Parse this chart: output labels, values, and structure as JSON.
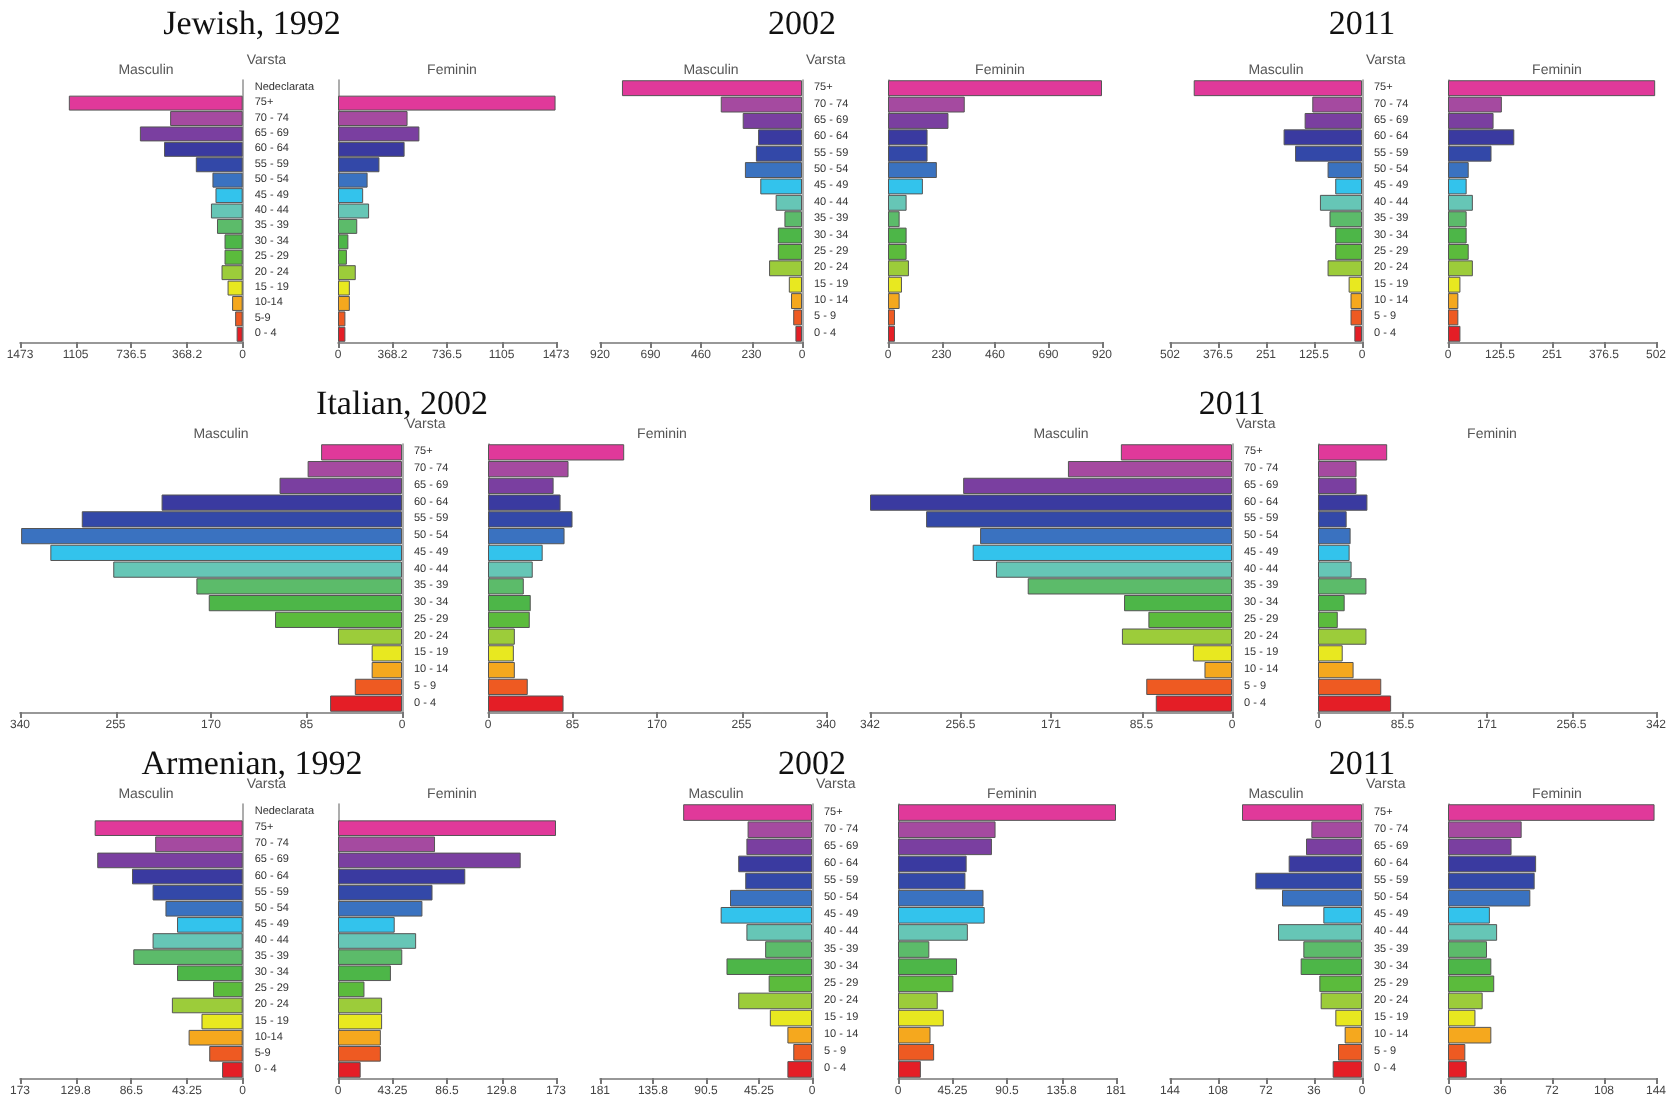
{
  "chart_data": [
    {
      "type": "bar",
      "orientation": "horizontal",
      "title": "Jewish, 1992",
      "subtitle": "Masculin",
      "ylabel": "Varsta",
      "categories": [
        "Nedeclarata",
        "75+",
        "70 - 74",
        "65 - 69",
        "60 - 64",
        "55 - 59",
        "50 - 54",
        "45 - 49",
        "40 - 44",
        "35 - 39",
        "30 - 34",
        "25 - 29",
        "20 - 24",
        "15 - 19",
        "10-14",
        "5-9",
        "0 - 4"
      ],
      "values": [
        null,
        1150,
        480,
        680,
        520,
        310,
        200,
        180,
        210,
        170,
        120,
        120,
        140,
        100,
        70,
        50,
        40
      ],
      "colors": [
        null,
        "#e0399a",
        "#a54aa0",
        "#7a3fa0",
        "#3a3aa0",
        "#3348a8",
        "#3a72c0",
        "#33c3ec",
        "#66c6b6",
        "#5cbb6a",
        "#4db648",
        "#5bbb3c",
        "#9ccc3a",
        "#e8e820",
        "#f5a81e",
        "#ee5a22",
        "#e41e26"
      ],
      "xlim": [
        1473,
        0
      ],
      "xticks": [
        1473,
        1105,
        736.5,
        368.2,
        0
      ]
    },
    {
      "type": "bar",
      "orientation": "horizontal",
      "subtitle": "Feminin",
      "categories": [
        null,
        null,
        null,
        null,
        null,
        null,
        null,
        null,
        null,
        null,
        null,
        null,
        null,
        null,
        null,
        null,
        null
      ],
      "values": [
        null,
        1470,
        470,
        550,
        450,
        280,
        200,
        170,
        210,
        130,
        70,
        60,
        120,
        80,
        80,
        50,
        50
      ],
      "colors": [
        null,
        "#e0399a",
        "#a54aa0",
        "#7a3fa0",
        "#3a3aa0",
        "#3348a8",
        "#3a72c0",
        "#33c3ec",
        "#66c6b6",
        "#5cbb6a",
        "#4db648",
        "#5bbb3c",
        "#9ccc3a",
        "#e8e820",
        "#f5a81e",
        "#ee5a22",
        "#e41e26"
      ],
      "xlim": [
        0,
        1473
      ],
      "xticks": [
        0,
        368.2,
        736.5,
        1105,
        1473
      ]
    },
    {
      "type": "bar",
      "orientation": "horizontal",
      "title": "2002",
      "subtitle": "Masculin",
      "ylabel": "Varsta",
      "categories": [
        "75+",
        "70 - 74",
        "65 - 69",
        "60 - 64",
        "55 - 59",
        "50 - 54",
        "45 - 49",
        "40 - 44",
        "35 - 39",
        "30 - 34",
        "25 - 29",
        "20 - 24",
        "15 - 19",
        "10 - 14",
        "5 - 9",
        "0 - 4"
      ],
      "values": [
        820,
        370,
        270,
        200,
        210,
        260,
        190,
        120,
        80,
        110,
        110,
        150,
        60,
        50,
        40,
        30
      ],
      "colors": [
        "#e0399a",
        "#a54aa0",
        "#7a3fa0",
        "#3a3aa0",
        "#3348a8",
        "#3a72c0",
        "#33c3ec",
        "#66c6b6",
        "#5cbb6a",
        "#4db648",
        "#5bbb3c",
        "#9ccc3a",
        "#e8e820",
        "#f5a81e",
        "#ee5a22",
        "#e41e26"
      ],
      "xlim": [
        920,
        0
      ],
      "xticks": [
        920,
        690,
        460,
        230,
        0
      ]
    },
    {
      "type": "bar",
      "orientation": "horizontal",
      "subtitle": "Feminin",
      "categories": [
        null,
        null,
        null,
        null,
        null,
        null,
        null,
        null,
        null,
        null,
        null,
        null,
        null,
        null,
        null,
        null
      ],
      "values": [
        920,
        330,
        260,
        170,
        170,
        210,
        150,
        80,
        50,
        80,
        80,
        90,
        60,
        50,
        30,
        30
      ],
      "colors": [
        "#e0399a",
        "#a54aa0",
        "#7a3fa0",
        "#3a3aa0",
        "#3348a8",
        "#3a72c0",
        "#33c3ec",
        "#66c6b6",
        "#5cbb6a",
        "#4db648",
        "#5bbb3c",
        "#9ccc3a",
        "#e8e820",
        "#f5a81e",
        "#ee5a22",
        "#e41e26"
      ],
      "xlim": [
        0,
        920
      ],
      "xticks": [
        0,
        230,
        460,
        690,
        920
      ]
    },
    {
      "type": "bar",
      "orientation": "horizontal",
      "title": "2011",
      "subtitle": "Masculin",
      "ylabel": "Varsta",
      "categories": [
        "75+",
        "70 - 74",
        "65 - 69",
        "60 - 64",
        "55 - 59",
        "50 - 54",
        "45 - 49",
        "40 - 44",
        "35 - 39",
        "30 - 34",
        "25 - 29",
        "20 - 24",
        "15 - 19",
        "10 - 14",
        "5 - 9",
        "0 - 4"
      ],
      "values": [
        440,
        130,
        150,
        205,
        175,
        90,
        70,
        110,
        85,
        70,
        70,
        90,
        35,
        30,
        30,
        20
      ],
      "colors": [
        "#e0399a",
        "#a54aa0",
        "#7a3fa0",
        "#3a3aa0",
        "#3348a8",
        "#3a72c0",
        "#33c3ec",
        "#66c6b6",
        "#5cbb6a",
        "#4db648",
        "#5bbb3c",
        "#9ccc3a",
        "#e8e820",
        "#f5a81e",
        "#ee5a22",
        "#e41e26"
      ],
      "xlim": [
        502,
        0
      ],
      "xticks": [
        502,
        376.5,
        251,
        125.5,
        0
      ]
    },
    {
      "type": "bar",
      "orientation": "horizontal",
      "subtitle": "Feminin",
      "categories": [
        null,
        null,
        null,
        null,
        null,
        null,
        null,
        null,
        null,
        null,
        null,
        null,
        null,
        null,
        null,
        null
      ],
      "values": [
        500,
        130,
        110,
        160,
        105,
        50,
        45,
        60,
        45,
        45,
        50,
        60,
        30,
        25,
        25,
        30
      ],
      "colors": [
        "#e0399a",
        "#a54aa0",
        "#7a3fa0",
        "#3a3aa0",
        "#3348a8",
        "#3a72c0",
        "#33c3ec",
        "#66c6b6",
        "#5cbb6a",
        "#4db648",
        "#5bbb3c",
        "#9ccc3a",
        "#e8e820",
        "#f5a81e",
        "#ee5a22",
        "#e41e26"
      ],
      "xlim": [
        0,
        502
      ],
      "xticks": [
        0,
        125.5,
        251,
        376.5,
        502
      ]
    },
    {
      "type": "bar",
      "orientation": "horizontal",
      "title": "Italian, 2002",
      "subtitle": "Masculin",
      "ylabel": "Varsta",
      "categories": [
        "75+",
        "70 - 74",
        "65 - 69",
        "60 - 64",
        "55 - 59",
        "50 - 54",
        "45 - 49",
        "40 - 44",
        "35 - 39",
        "30 - 34",
        "25 - 29",
        "20 - 24",
        "15 - 19",
        "10 - 14",
        "5 - 9",
        "0 - 4"
      ],
      "values": [
        72,
        84,
        109,
        214,
        285,
        339,
        313,
        257,
        183,
        172,
        113,
        57,
        27,
        27,
        42,
        64
      ],
      "colors": [
        "#e0399a",
        "#a54aa0",
        "#7a3fa0",
        "#3a3aa0",
        "#3348a8",
        "#3a72c0",
        "#33c3ec",
        "#66c6b6",
        "#5cbb6a",
        "#4db648",
        "#5bbb3c",
        "#9ccc3a",
        "#e8e820",
        "#f5a81e",
        "#ee5a22",
        "#e41e26"
      ],
      "xlim": [
        340,
        0
      ],
      "xticks": [
        340,
        255,
        170,
        85,
        0
      ]
    },
    {
      "type": "bar",
      "orientation": "horizontal",
      "subtitle": "Feminin",
      "categories": [
        null,
        null,
        null,
        null,
        null,
        null,
        null,
        null,
        null,
        null,
        null,
        null,
        null,
        null,
        null,
        null
      ],
      "values": [
        137,
        81,
        66,
        73,
        85,
        77,
        55,
        45,
        36,
        43,
        42,
        27,
        26,
        27,
        40,
        76
      ],
      "colors": [
        "#e0399a",
        "#a54aa0",
        "#7a3fa0",
        "#3a3aa0",
        "#3348a8",
        "#3a72c0",
        "#33c3ec",
        "#66c6b6",
        "#5cbb6a",
        "#4db648",
        "#5bbb3c",
        "#9ccc3a",
        "#e8e820",
        "#f5a81e",
        "#ee5a22",
        "#e41e26"
      ],
      "xlim": [
        0,
        340
      ],
      "xticks": [
        0,
        85,
        170,
        255,
        340
      ]
    },
    {
      "type": "bar",
      "orientation": "horizontal",
      "title": "2011",
      "subtitle": "Masculin",
      "ylabel": "Varsta",
      "categories": [
        "75+",
        "70 - 74",
        "65 - 69",
        "60 - 64",
        "55 - 59",
        "50 - 54",
        "45 - 49",
        "40 - 44",
        "35 - 39",
        "30 - 34",
        "25 - 29",
        "20 - 24",
        "15 - 19",
        "10 - 14",
        "5 - 9",
        "0 - 4"
      ],
      "values": [
        105,
        155,
        254,
        342,
        289,
        238,
        245,
        223,
        193,
        102,
        79,
        104,
        37,
        26,
        81,
        72
      ],
      "colors": [
        "#e0399a",
        "#a54aa0",
        "#7a3fa0",
        "#3a3aa0",
        "#3348a8",
        "#3a72c0",
        "#33c3ec",
        "#66c6b6",
        "#5cbb6a",
        "#4db648",
        "#5bbb3c",
        "#9ccc3a",
        "#e8e820",
        "#f5a81e",
        "#ee5a22",
        "#e41e26"
      ],
      "xlim": [
        342,
        0
      ],
      "xticks": [
        342,
        256.5,
        171,
        85.5,
        0
      ]
    },
    {
      "type": "bar",
      "orientation": "horizontal",
      "subtitle": "Feminin",
      "categories": [
        null,
        null,
        null,
        null,
        null,
        null,
        null,
        null,
        null,
        null,
        null,
        null,
        null,
        null,
        null,
        null
      ],
      "values": [
        70,
        39,
        39,
        50,
        29,
        33,
        32,
        34,
        49,
        27,
        20,
        49,
        25,
        36,
        64,
        74
      ],
      "colors": [
        "#e0399a",
        "#a54aa0",
        "#7a3fa0",
        "#3a3aa0",
        "#3348a8",
        "#3a72c0",
        "#33c3ec",
        "#66c6b6",
        "#5cbb6a",
        "#4db648",
        "#5bbb3c",
        "#9ccc3a",
        "#e8e820",
        "#f5a81e",
        "#ee5a22",
        "#e41e26"
      ],
      "xlim": [
        0,
        342
      ],
      "xticks": [
        0,
        85.5,
        171,
        256.5,
        342
      ]
    },
    {
      "type": "bar",
      "orientation": "horizontal",
      "title": "Armenian, 1992",
      "subtitle": "Masculin",
      "ylabel": "Varsta",
      "categories": [
        "Nedeclarata",
        "75+",
        "70 - 74",
        "65 - 69",
        "60 - 64",
        "55 - 59",
        "50 - 54",
        "45 - 49",
        "40 - 44",
        "35 - 39",
        "30 - 34",
        "25 - 29",
        "20 - 24",
        "15 - 19",
        "10-14",
        "5-9",
        "0 - 4"
      ],
      "values": [
        null,
        115,
        68,
        113,
        86,
        70,
        60,
        51,
        70,
        85,
        51,
        23,
        55,
        32,
        42,
        26,
        16
      ],
      "colors": [
        null,
        "#e0399a",
        "#a54aa0",
        "#7a3fa0",
        "#3a3aa0",
        "#3348a8",
        "#3a72c0",
        "#33c3ec",
        "#66c6b6",
        "#5cbb6a",
        "#4db648",
        "#5bbb3c",
        "#9ccc3a",
        "#e8e820",
        "#f5a81e",
        "#ee5a22",
        "#e41e26"
      ],
      "xlim": [
        173,
        0
      ],
      "xticks": [
        173,
        129.8,
        86.5,
        43.25,
        0
      ]
    },
    {
      "type": "bar",
      "orientation": "horizontal",
      "subtitle": "Feminin",
      "categories": [
        null,
        null,
        null,
        null,
        null,
        null,
        null,
        null,
        null,
        null,
        null,
        null,
        null,
        null,
        null,
        null,
        null
      ],
      "values": [
        null,
        173,
        77,
        145,
        101,
        75,
        67,
        45,
        62,
        51,
        42,
        21,
        35,
        35,
        34,
        34,
        18
      ],
      "colors": [
        null,
        "#e0399a",
        "#a54aa0",
        "#7a3fa0",
        "#3a3aa0",
        "#3348a8",
        "#3a72c0",
        "#33c3ec",
        "#66c6b6",
        "#5cbb6a",
        "#4db648",
        "#5bbb3c",
        "#9ccc3a",
        "#e8e820",
        "#f5a81e",
        "#ee5a22",
        "#e41e26"
      ],
      "xlim": [
        0,
        173
      ],
      "xticks": [
        0,
        43.25,
        86.5,
        129.8,
        173
      ]
    },
    {
      "type": "bar",
      "orientation": "horizontal",
      "title": "2002",
      "subtitle": "Masculin",
      "ylabel": "Varsta",
      "categories": [
        "75+",
        "70 - 74",
        "65 - 69",
        "60 - 64",
        "55 - 59",
        "50 - 54",
        "45 - 49",
        "40 - 44",
        "35 - 39",
        "30 - 34",
        "25 - 29",
        "20 - 24",
        "15 - 19",
        "10 - 14",
        "5 - 9",
        "0 - 4"
      ],
      "values": [
        110,
        55,
        56,
        63,
        57,
        70,
        78,
        56,
        40,
        73,
        37,
        63,
        36,
        21,
        16,
        21
      ],
      "colors": [
        "#e0399a",
        "#a54aa0",
        "#7a3fa0",
        "#3a3aa0",
        "#3348a8",
        "#3a72c0",
        "#33c3ec",
        "#66c6b6",
        "#5cbb6a",
        "#4db648",
        "#5bbb3c",
        "#9ccc3a",
        "#e8e820",
        "#f5a81e",
        "#ee5a22",
        "#e41e26"
      ],
      "xlim": [
        181,
        0
      ],
      "xticks": [
        181,
        135.8,
        90.5,
        45.25,
        0
      ]
    },
    {
      "type": "bar",
      "orientation": "horizontal",
      "subtitle": "Feminin",
      "categories": [
        null,
        null,
        null,
        null,
        null,
        null,
        null,
        null,
        null,
        null,
        null,
        null,
        null,
        null,
        null,
        null
      ],
      "values": [
        181,
        81,
        78,
        57,
        56,
        71,
        72,
        58,
        26,
        49,
        46,
        33,
        38,
        27,
        30,
        19
      ],
      "colors": [
        "#e0399a",
        "#a54aa0",
        "#7a3fa0",
        "#3a3aa0",
        "#3348a8",
        "#3a72c0",
        "#33c3ec",
        "#66c6b6",
        "#5cbb6a",
        "#4db648",
        "#5bbb3c",
        "#9ccc3a",
        "#e8e820",
        "#f5a81e",
        "#ee5a22",
        "#e41e26"
      ],
      "xlim": [
        0,
        181
      ],
      "xticks": [
        0,
        45.25,
        90.5,
        135.8,
        181
      ]
    },
    {
      "type": "bar",
      "orientation": "horizontal",
      "title": "2011",
      "subtitle": "Masculin",
      "ylabel": "Varsta",
      "categories": [
        "75+",
        "70 - 74",
        "65 - 69",
        "60 - 64",
        "55 - 59",
        "50 - 54",
        "45 - 49",
        "40 - 44",
        "35 - 39",
        "30 - 34",
        "25 - 29",
        "20 - 24",
        "15 - 19",
        "10 - 14",
        "5 - 9",
        "0 - 4"
      ],
      "values": [
        90,
        38,
        42,
        55,
        80,
        60,
        29,
        63,
        44,
        46,
        32,
        31,
        20,
        13,
        18,
        22
      ],
      "colors": [
        "#e0399a",
        "#a54aa0",
        "#7a3fa0",
        "#3a3aa0",
        "#3348a8",
        "#3a72c0",
        "#33c3ec",
        "#66c6b6",
        "#5cbb6a",
        "#4db648",
        "#5bbb3c",
        "#9ccc3a",
        "#e8e820",
        "#f5a81e",
        "#ee5a22",
        "#e41e26"
      ],
      "xlim": [
        144,
        0
      ],
      "xticks": [
        144,
        108,
        72,
        36,
        0
      ]
    },
    {
      "type": "bar",
      "orientation": "horizontal",
      "subtitle": "Feminin",
      "categories": [
        null,
        null,
        null,
        null,
        null,
        null,
        null,
        null,
        null,
        null,
        null,
        null,
        null,
        null,
        null,
        null
      ],
      "values": [
        143,
        51,
        44,
        61,
        60,
        57,
        29,
        34,
        27,
        30,
        32,
        24,
        19,
        30,
        12,
        13
      ],
      "colors": [
        "#e0399a",
        "#a54aa0",
        "#7a3fa0",
        "#3a3aa0",
        "#3348a8",
        "#3a72c0",
        "#33c3ec",
        "#66c6b6",
        "#5cbb6a",
        "#4db648",
        "#5bbb3c",
        "#9ccc3a",
        "#e8e820",
        "#f5a81e",
        "#ee5a22",
        "#e41e26"
      ],
      "xlim": [
        0,
        144
      ],
      "xticks": [
        0,
        36,
        72,
        108,
        144
      ]
    }
  ]
}
